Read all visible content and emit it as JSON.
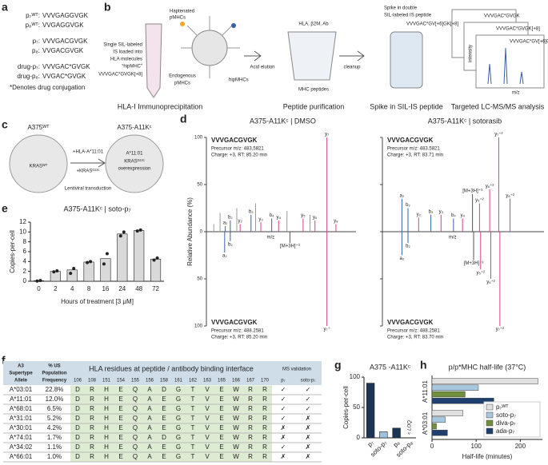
{
  "panel_labels": [
    "a",
    "b",
    "c",
    "d",
    "e",
    "f",
    "g",
    "h"
  ],
  "panel_a": {
    "rows": [
      {
        "label": "p₇ᵂᵀ:",
        "sequence": "VVVGAGGVGK"
      },
      {
        "label": "p₈ᵂᵀ:",
        "sequence": "VVGAGGVGK"
      },
      {
        "label": "p₇:",
        "sequence": "VVVGACGVGK"
      },
      {
        "label": "p₈:",
        "sequence": "VVGACGVGK"
      },
      {
        "label": "drug-p₇:",
        "sequence": "VVVGAC*GVGK"
      },
      {
        "label": "drug-p₈:",
        "sequence": "VVGAC*GVGK"
      }
    ],
    "footnote": "*Denotes drug conjugation"
  },
  "panel_b": {
    "labels": [
      "Haptenated",
      "pMHCs",
      "Single SIL-labeled",
      "IS loaded into",
      "HLA molecules",
      "“hipMHC”",
      "VVVGAC*GVGK[+8]",
      "Endogenous",
      "pMHCs",
      "hipMHCs",
      "Acid elution",
      "HLA, β2M, Ab",
      "cleanup",
      "MHC peptides",
      "Spike in double",
      "SIL-labeled IS peptide",
      "VVVGAC*GV[+6]GK[+8]",
      "VVVGAC*GVGK",
      "VVVGAC*GVGK[+8]",
      "VVVGAC*GV[+6]GK[+8]",
      "intensity",
      "m/z"
    ],
    "steps": [
      "HLA-I Immunoprecipitation",
      "Peptide purification",
      "Spike in SIL-IS peptide",
      "Targeted LC-MS/MS analysis"
    ]
  },
  "panel_c": {
    "labels": [
      "A375ᵂᵀ",
      "A375-A11Kᶜ",
      "KRASᵂᵀ",
      "+HLA-A*11:01",
      "+KRASᴳ¹²ᶜ",
      "Lentiviral transduction",
      "A*11:01",
      "KRASᴳ¹²ᶜ",
      "overexpression"
    ]
  },
  "panel_d": {
    "y_label": "Relative Abundance (%)",
    "x_label": "m/z",
    "ylim": [
      -100,
      100
    ],
    "xlim": [
      100,
      800
    ],
    "yticks": [
      100,
      50,
      0,
      {
        "value": -50,
        "label": "50"
      },
      {
        "value": -100,
        "label": "100"
      }
    ],
    "spectra": [
      {
        "title": "A375-A11Kᶜ | DMSO",
        "top": {
          "sequence": "VVVGACGVGK",
          "precursor": "Precursor m/z: 483.5821",
          "charge": "Charge: +3, RT: 85.20 min",
          "peaks": [
            [
              120,
              8,
              "#999999"
            ],
            [
              150,
              20,
              "#999999"
            ],
            [
              175,
              6,
              "#3a5fa8",
              "a₂"
            ],
            [
              199,
              12,
              "#3a5fa8",
              "b₂"
            ],
            [
              230,
              25,
              "#999999"
            ],
            [
              246,
              8,
              "#d0408a",
              "y₂"
            ],
            [
              298,
              18,
              "#3a5fa8",
              "b₃"
            ],
            [
              320,
              30,
              "#999999"
            ],
            [
              345,
              10,
              "#d0408a",
              "y₃"
            ],
            [
              397,
              14,
              "#3a5fa8",
              "b₄"
            ],
            [
              430,
              12,
              "#d0408a",
              "y₄"
            ],
            [
              470,
              22,
              "#999999"
            ],
            [
              547,
              14,
              "#d0408a",
              "y₅"
            ],
            [
              580,
              18,
              "#999999"
            ],
            [
              604,
              12,
              "#d0408a",
              "y₆"
            ],
            [
              661,
              100,
              "#d0408a",
              "y₇"
            ],
            [
              704,
              8,
              "#d0408a",
              "y₈"
            ]
          ]
        },
        "bottom": {
          "sequence": "VVVGACGVGK",
          "precursor": "Precursor m/z: 488.2581",
          "charge": "Charge: +3, RT: 85.20 min",
          "peaks": [
            [
              172,
              22,
              "#3a5fa8",
              "a₂"
            ],
            [
              199,
              10,
              "#3a5fa8",
              "b₂"
            ],
            [
              484,
              12,
              "#555555",
              "[M+3H]⁺³"
            ],
            [
              661,
              100,
              "#d0408a",
              "y₇⁺"
            ]
          ]
        }
      },
      {
        "title": "A375-A11Kᶜ | sotorasib",
        "top": {
          "sequence": "VVVGACGVGK",
          "precursor": "Precursor m/z: 483.5821",
          "charge": "Charge: +3, RT: 83.71 min",
          "peaks": [
            [
              172,
              35,
              "#3a5fa8",
              "a₂"
            ],
            [
              199,
              25,
              "#3a5fa8",
              "b₂"
            ],
            [
              246,
              15,
              "#d0408a",
              "y₂"
            ],
            [
              300,
              18,
              "#3a5fa8",
              "b₃"
            ],
            [
              345,
              18,
              "#d0408a",
              "y₃"
            ],
            [
              400,
              14,
              "#3a5fa8",
              "b₄"
            ],
            [
              440,
              14,
              "#d0408a",
              "y₄"
            ],
            [
              484,
              40,
              "#555555",
              "[M+3H]⁺³"
            ],
            [
              515,
              30,
              "#d0408a",
              "y₅⁺²"
            ],
            [
              560,
              45,
              "#d0408a",
              "y₆⁺²"
            ],
            [
              600,
              100,
              "#d0408a",
              "y₇⁺²"
            ],
            [
              650,
              35,
              "#d0408a",
              "y₈⁺²"
            ]
          ]
        },
        "bottom": {
          "sequence": "VVVGACGVGK",
          "precursor": "Precursor m/z: 488.2581",
          "charge": "Charge: +3, RT: 83.70 min",
          "peaks": [
            [
              172,
              25,
              "#3a5fa8",
              "a₂"
            ],
            [
              199,
              12,
              "#3a5fa8",
              "b₂"
            ],
            [
              489,
              30,
              "#555555",
              "[M+3H]⁺³"
            ],
            [
              520,
              40,
              "#d0408a",
              "y₅⁺²"
            ],
            [
              565,
              50,
              "#d0408a",
              "y₆⁺²"
            ],
            [
              605,
              100,
              "#d0408a",
              "y₇⁺²"
            ]
          ]
        }
      }
    ]
  },
  "table": {
    "header_allele": [
      "A3",
      "Supertype",
      "Allele"
    ],
    "header_frequency": [
      "% US",
      "Population",
      "Frequency"
    ],
    "header_residues": "HLA residues at peptide / antibody binding interface",
    "header_validation": "MS validation",
    "positions": [
      "106",
      "108",
      "151",
      "154",
      "155",
      "156",
      "158",
      "161",
      "162",
      "163",
      "165",
      "166",
      "167",
      "170"
    ],
    "validation_columns": [
      "p₇",
      "soto-p₇"
    ],
    "symbols": {
      "yes": "✓",
      "no": "✗"
    },
    "rows": [
      {
        "allele": "A*03:01",
        "frequency": "22.8%",
        "residues": [
          "D",
          "R",
          "H",
          "E",
          "Q",
          "A",
          "D",
          "G",
          "T",
          "V",
          "E",
          "W",
          "R",
          "R"
        ],
        "validation": [
          true,
          true
        ]
      },
      {
        "allele": "A*11:01",
        "frequency": "12.0%",
        "residues": [
          "D",
          "R",
          "H",
          "E",
          "Q",
          "A",
          "E",
          "G",
          "T",
          "V",
          "E",
          "W",
          "R",
          "R"
        ],
        "validation": [
          true,
          true
        ]
      },
      {
        "allele": "A*68:01",
        "frequency": "6.5%",
        "residues": [
          "D",
          "R",
          "H",
          "E",
          "Q",
          "A",
          "E",
          "G",
          "T",
          "V",
          "E",
          "W",
          "R",
          "R"
        ],
        "validation": [
          true,
          true
        ]
      },
      {
        "allele": "A*31:01",
        "frequency": "5.2%",
        "residues": [
          "D",
          "R",
          "H",
          "E",
          "Q",
          "A",
          "E",
          "G",
          "T",
          "V",
          "E",
          "W",
          "R",
          "R"
        ],
        "validation": [
          true,
          false
        ]
      },
      {
        "allele": "A*30:01",
        "frequency": "4.2%",
        "residues": [
          "D",
          "R",
          "H",
          "E",
          "Q",
          "A",
          "E",
          "G",
          "T",
          "V",
          "E",
          "W",
          "R",
          "R"
        ],
        "validation": [
          false,
          false
        ]
      },
      {
        "allele": "A*74:01",
        "frequency": "1.7%",
        "residues": [
          "D",
          "R",
          "H",
          "E",
          "Q",
          "A",
          "D",
          "G",
          "T",
          "V",
          "E",
          "W",
          "R",
          "R"
        ],
        "validation": [
          false,
          false
        ]
      },
      {
        "allele": "A*34:02",
        "frequency": "1.1%",
        "residues": [
          "D",
          "R",
          "H",
          "E",
          "Q",
          "A",
          "E",
          "G",
          "T",
          "V",
          "E",
          "W",
          "R",
          "R"
        ],
        "validation": [
          true,
          false
        ]
      },
      {
        "allele": "A*66:01",
        "frequency": "1.0%",
        "residues": [
          "D",
          "R",
          "H",
          "E",
          "Q",
          "A",
          "E",
          "G",
          "T",
          "V",
          "E",
          "W",
          "R",
          "R"
        ],
        "validation": [
          false,
          false
        ]
      }
    ]
  },
  "chart_data": [
    {
      "type": "bar",
      "title": "A375-A11Kᶜ | soto-p₇",
      "x_label": "Hours of treatment [3 μM]",
      "y_label": "Copies-per-cell",
      "categories": [
        "0",
        "2",
        "4",
        "8",
        "16",
        "24",
        "48",
        "72"
      ],
      "values": [
        0.1,
        2.0,
        2.3,
        3.9,
        4.6,
        9.6,
        10.3,
        4.5
      ],
      "replicates": [
        [
          0.05,
          0.15
        ],
        [
          1.9,
          2.1
        ],
        [
          1.6,
          2.6
        ],
        [
          3.8,
          4.0
        ],
        [
          3.5,
          5.6
        ],
        [
          9.2,
          10.0
        ],
        [
          10.2,
          10.4
        ],
        [
          4.3,
          4.7
        ]
      ],
      "color": "#d9d9d9",
      "ylim": [
        0,
        12
      ],
      "yticks": [
        0,
        2,
        4,
        6,
        8,
        10,
        12
      ]
    },
    {
      "type": "bar",
      "title": "A375 -A11Kᶜ",
      "y_label": "Copies-per-cell",
      "categories": [
        "p₇",
        "soto-p₇",
        "p₈",
        "soto-p₈"
      ],
      "values": [
        90,
        10,
        16,
        null
      ],
      "colors": [
        "#1c3557",
        "#9ec3db",
        "#1c3557",
        "#9ec3db"
      ],
      "annotation": "< LOQ",
      "ylim": [
        0,
        100
      ],
      "yticks": [
        0,
        50,
        100
      ]
    },
    {
      "type": "barh",
      "title": "p/p*MHC half-life (37°C)",
      "x_label": "Half-life (minutes)",
      "categories": [
        "A*11:01",
        "A*03:01"
      ],
      "series": [
        {
          "name": "p₇ᵂᵀ",
          "color": "#e0e0e0",
          "values": [
            240,
            70
          ]
        },
        {
          "name": "soto-p₇",
          "color": "#a8c8de",
          "values": [
            105,
            30
          ]
        },
        {
          "name": "diva-p₇",
          "color": "#6f8f3c",
          "values": [
            75,
            10
          ]
        },
        {
          "name": "ada-p₇",
          "color": "#1f3f6e",
          "values": [
            140,
            35
          ]
        }
      ],
      "xlim": [
        0,
        250
      ],
      "xticks": [
        0,
        100,
        200
      ],
      "legend": "lower right"
    }
  ]
}
